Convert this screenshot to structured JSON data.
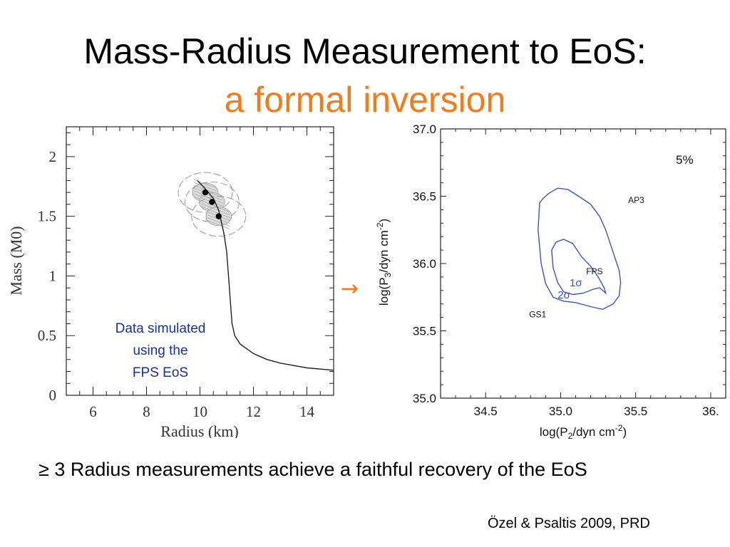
{
  "slide": {
    "title_line1": "Mass-Radius Measurement to EoS:",
    "title_line2": "a formal inversion",
    "arrow": "→",
    "note_lines": [
      "Data simulated",
      "using the",
      "FPS EoS"
    ],
    "bottom_text": "≥ 3 Radius measurements achieve a faithful recovery of the EoS",
    "citation": "Özel & Psaltis 2009, PRD",
    "colors": {
      "title_accent": "#f07c1b",
      "note": "#1a2fa3",
      "contour": "#3a55c8"
    }
  },
  "chart_data": [
    {
      "type": "line",
      "xlabel": "Radius (km)",
      "ylabel": "Mass (M0)",
      "xlim": [
        5,
        15
      ],
      "ylim": [
        0,
        2.25
      ],
      "xticks": [
        6,
        8,
        10,
        12,
        14
      ],
      "yticks": [
        0,
        0.5,
        1,
        1.5,
        2
      ],
      "series": [
        {
          "x": [
            9.9,
            10.2,
            10.5,
            10.7,
            10.9,
            11.0,
            11.05,
            11.1,
            11.15,
            11.2,
            11.3,
            11.5,
            12.0,
            12.5,
            13.0,
            14.0,
            15.0
          ],
          "y": [
            1.8,
            1.73,
            1.65,
            1.55,
            1.35,
            1.2,
            1.05,
            0.9,
            0.75,
            0.6,
            0.5,
            0.43,
            0.35,
            0.3,
            0.27,
            0.23,
            0.21
          ]
        }
      ],
      "points": [
        {
          "x": 10.2,
          "y": 1.7
        },
        {
          "x": 10.45,
          "y": 1.62
        },
        {
          "x": 10.7,
          "y": 1.5
        }
      ]
    },
    {
      "type": "contour",
      "xlabel": "log(P2/dyn cm-2)",
      "ylabel": "log(P3/dyn cm-2)",
      "xlim": [
        34.2,
        36.1
      ],
      "ylim": [
        35.0,
        37.0
      ],
      "xticks": [
        "34.5",
        "35.0",
        "35.5",
        "36."
      ],
      "xtick_values": [
        34.5,
        35.0,
        35.5,
        36.0
      ],
      "yticks": [
        "35.0",
        "35.5",
        "36.0",
        "36.5",
        "37.0"
      ],
      "ytick_values": [
        35.0,
        35.5,
        36.0,
        36.5,
        37.0
      ],
      "annotation": "5%",
      "labels": [
        {
          "text": "AP3",
          "x": 35.45,
          "y": 36.45
        },
        {
          "text": "FPS",
          "x": 35.17,
          "y": 35.92
        },
        {
          "text": "1σ",
          "x": 35.06,
          "y": 35.83
        },
        {
          "text": "2σ",
          "x": 34.98,
          "y": 35.74
        },
        {
          "text": "GS1",
          "x": 34.79,
          "y": 35.6
        }
      ],
      "contour_2sigma": {
        "x": [
          34.86,
          34.88,
          34.92,
          34.98,
          35.05,
          35.12,
          35.2,
          35.26,
          35.3,
          35.33,
          35.36,
          35.39,
          35.4,
          35.39,
          35.35,
          35.28,
          35.2,
          35.1,
          35.02,
          34.95,
          34.9,
          34.87,
          34.85,
          34.86
        ],
        "y": [
          36.45,
          36.48,
          36.52,
          36.56,
          36.55,
          36.5,
          36.44,
          36.35,
          36.25,
          36.15,
          36.05,
          35.95,
          35.86,
          35.76,
          35.7,
          35.66,
          35.68,
          35.71,
          35.72,
          35.75,
          35.85,
          36.0,
          36.25,
          36.45
        ]
      },
      "contour_1sigma": {
        "x": [
          34.94,
          34.97,
          35.02,
          35.08,
          35.14,
          35.2,
          35.25,
          35.29,
          35.3,
          35.26,
          35.22,
          35.15,
          35.08,
          35.02,
          34.98,
          34.95,
          34.94
        ],
        "y": [
          36.1,
          36.16,
          36.18,
          36.15,
          36.05,
          35.98,
          35.9,
          35.82,
          35.78,
          35.82,
          35.81,
          35.78,
          35.77,
          35.79,
          35.86,
          35.97,
          36.1
        ]
      }
    }
  ]
}
